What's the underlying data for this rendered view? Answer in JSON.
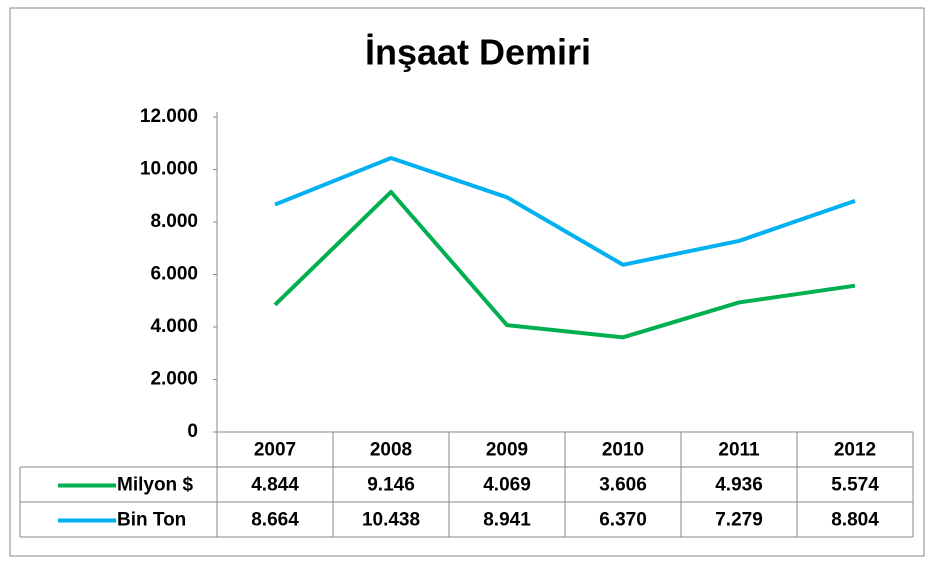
{
  "chart_data": {
    "type": "line",
    "title": "İnşaat Demiri",
    "categories": [
      "2007",
      "2008",
      "2009",
      "2010",
      "2011",
      "2012"
    ],
    "series": [
      {
        "name": "Milyon $",
        "color": "#00b050",
        "values": [
          4844,
          9146,
          4069,
          3606,
          4936,
          5574
        ],
        "value_labels": [
          "4.844",
          "9.146",
          "4.069",
          "3.606",
          "4.936",
          "5.574"
        ]
      },
      {
        "name": "Bin Ton",
        "color": "#00b0f0",
        "values": [
          8664,
          10438,
          8941,
          6370,
          7279,
          8804
        ],
        "value_labels": [
          "8.664",
          "10.438",
          "8.941",
          "6.370",
          "7.279",
          "8.804"
        ]
      }
    ],
    "ylim": [
      0,
      12000
    ],
    "yticks": [
      0,
      {
        "value": 2000,
        "label": "2.000"
      },
      {
        "value": 4000,
        "label": "4.000"
      },
      {
        "value": 6000,
        "label": "6.000"
      },
      {
        "value": 8000,
        "label": "8.000"
      },
      {
        "value": 10000,
        "label": "10.000"
      },
      {
        "value": 12000,
        "label": "12.000"
      }
    ],
    "grid": false
  }
}
